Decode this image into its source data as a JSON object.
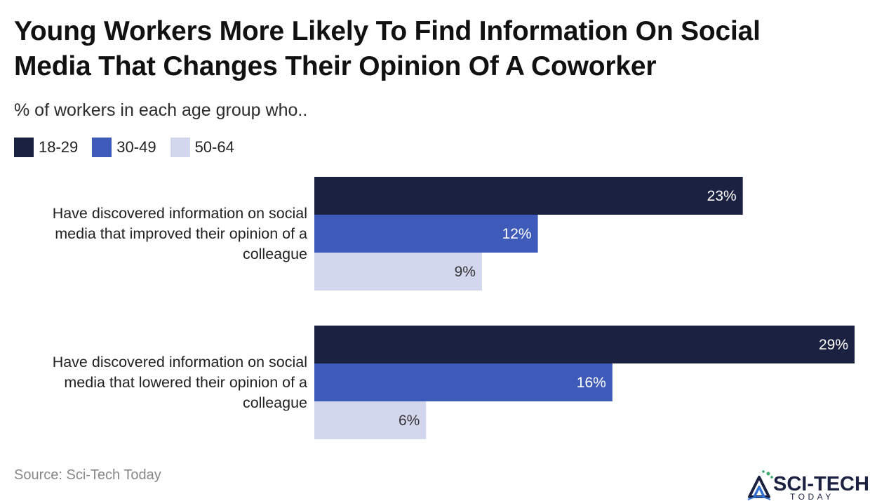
{
  "chart_data": {
    "type": "bar",
    "orientation": "horizontal",
    "title": "Young Workers More Likely To Find Information On Social Media That Changes Their Opinion Of A Coworker",
    "subtitle": "% of workers in each age group who..",
    "categories": [
      [
        "Have discovered information on social",
        "media that improved their opinion of a",
        "colleague"
      ],
      [
        "Have discovered information on social",
        "media that lowered their opinion of a",
        "colleague"
      ]
    ],
    "series": [
      {
        "name": "18-29",
        "values": [
          23,
          29
        ],
        "color": "#1b2140",
        "label_color": "#ffffff"
      },
      {
        "name": "30-49",
        "values": [
          12,
          16
        ],
        "color": "#3f5bb9",
        "label_color": "#ffffff"
      },
      {
        "name": "50-64",
        "values": [
          9,
          6
        ],
        "color": "#d3d7ee",
        "label_color": "#333333"
      }
    ],
    "value_suffix": "%",
    "xlim": [
      0,
      29
    ],
    "grid": false,
    "legend_position": "top-left"
  },
  "footer": {
    "source": "Source: Sci-Tech Today",
    "logo_text": "SCI-TECH",
    "logo_subtext": "TODAY"
  },
  "colors": {
    "logo_dark": "#1b2140",
    "logo_blue": "#2f6fd0",
    "logo_green": "#3da86b"
  }
}
